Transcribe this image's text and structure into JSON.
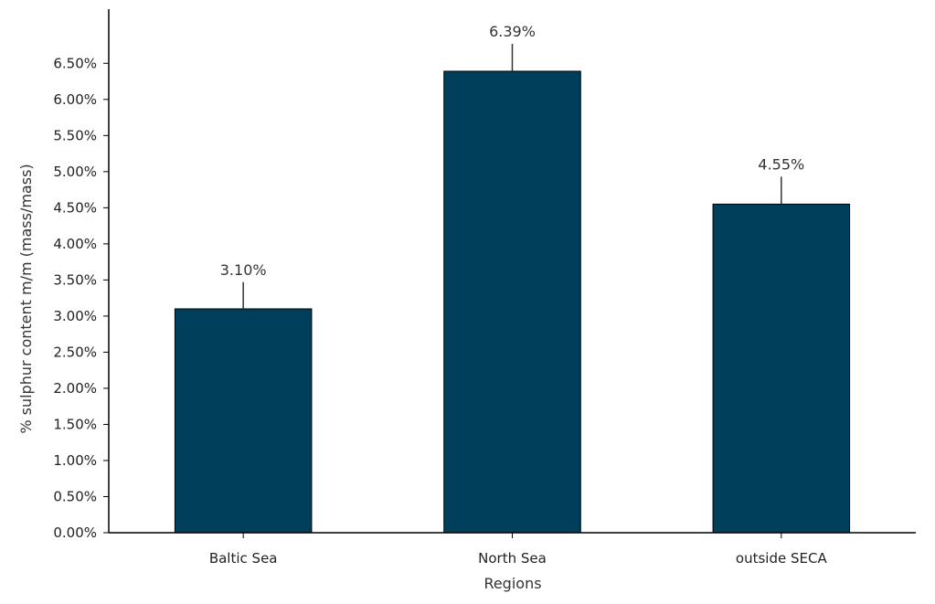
{
  "chart_data": {
    "type": "bar",
    "title": "",
    "xlabel": "Regions",
    "ylabel": "% sulphur content m/m (mass/mass)",
    "categories": [
      "Baltic Sea",
      "North Sea",
      "outside SECA"
    ],
    "values": [
      3.1,
      6.39,
      4.55
    ],
    "data_labels": [
      "3.10%",
      "6.39%",
      "4.55%"
    ],
    "error_upper": [
      3.47,
      6.77,
      4.93
    ],
    "ylim": [
      0,
      7.25
    ],
    "y_ticks": [
      0,
      0.5,
      1,
      1.5,
      2,
      2.5,
      3,
      3.5,
      4,
      4.5,
      5,
      5.5,
      6,
      6.5
    ],
    "y_tick_labels": [
      "0.00%",
      "0.50%",
      "1.00%",
      "1.50%",
      "2.00%",
      "2.50%",
      "3.00%",
      "3.50%",
      "4.00%",
      "4.50%",
      "5.00%",
      "5.50%",
      "6.00%",
      "6.50%"
    ],
    "bar_color": "#003f5c",
    "grid": false,
    "legend": "none"
  }
}
